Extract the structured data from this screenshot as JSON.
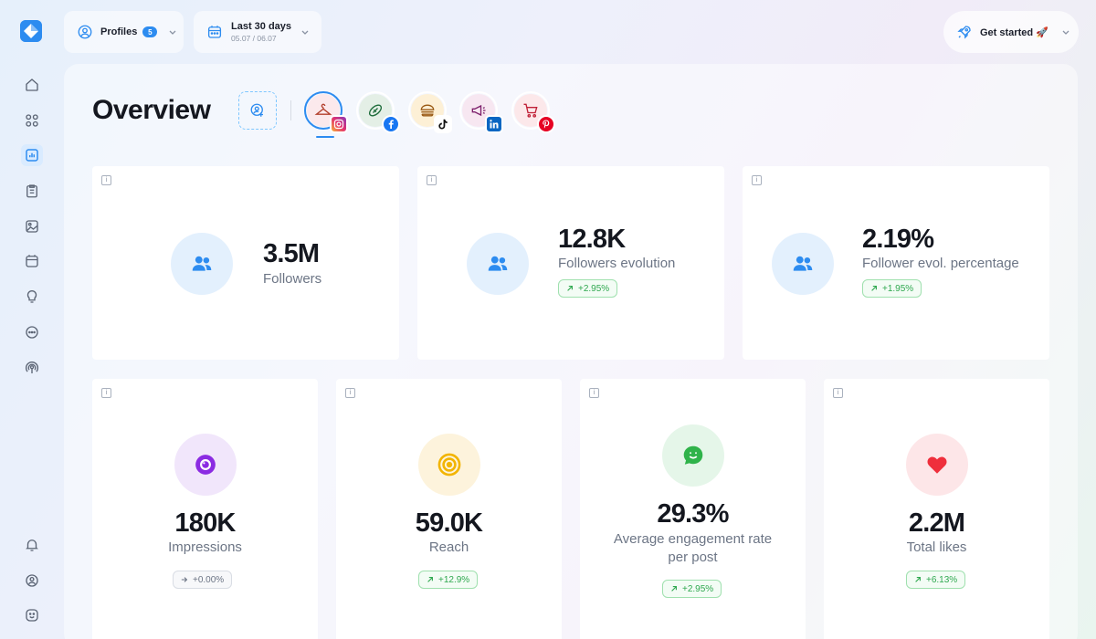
{
  "colors": {
    "accent": "#2d8cf0",
    "positive": "#2fa84f",
    "neutral": "#6c7585",
    "impressions": "#8b2be2",
    "reach": "#f2b400",
    "engagement": "#2fb34a",
    "likes": "#ef2f3c"
  },
  "topbar": {
    "profiles_label": "Profiles",
    "profiles_count": "5",
    "date_range_label": "Last 30 days",
    "date_range_sub": "05.07 / 06.07",
    "get_started_label": "Get started 🚀"
  },
  "sidebar": {
    "items": [
      {
        "icon": "home-icon"
      },
      {
        "icon": "grid-icon"
      },
      {
        "icon": "analytics-icon",
        "active": true
      },
      {
        "icon": "clipboard-icon"
      },
      {
        "icon": "image-icon"
      },
      {
        "icon": "calendar-icon"
      },
      {
        "icon": "bulb-icon"
      },
      {
        "icon": "chat-icon"
      },
      {
        "icon": "broadcast-icon"
      }
    ],
    "bottom_items": [
      {
        "icon": "bell-icon"
      },
      {
        "icon": "user-icon"
      },
      {
        "icon": "smile-icon"
      }
    ]
  },
  "overview": {
    "title": "Overview",
    "channels": [
      {
        "network": "instagram",
        "selected": true
      },
      {
        "network": "facebook"
      },
      {
        "network": "tiktok"
      },
      {
        "network": "linkedin"
      },
      {
        "network": "pinterest"
      }
    ]
  },
  "metrics": {
    "followers": {
      "value": "3.5M",
      "label": "Followers"
    },
    "followers_evolution": {
      "value": "12.8K",
      "label": "Followers evolution",
      "trend": "+2.95%"
    },
    "follower_evol_percentage": {
      "value": "2.19%",
      "label": "Follower evol. percentage",
      "trend": "+1.95%"
    },
    "impressions": {
      "value": "180K",
      "label": "Impressions",
      "trend": "+0.00%"
    },
    "reach": {
      "value": "59.0K",
      "label": "Reach",
      "trend": "+12.9%"
    },
    "engagement": {
      "value": "29.3%",
      "label_line1": "Average engagement rate",
      "label_line2": "per post",
      "trend": "+2.95%"
    },
    "likes": {
      "value": "2.2M",
      "label": "Total likes",
      "trend": "+6.13%"
    }
  },
  "info_glyph": "i"
}
